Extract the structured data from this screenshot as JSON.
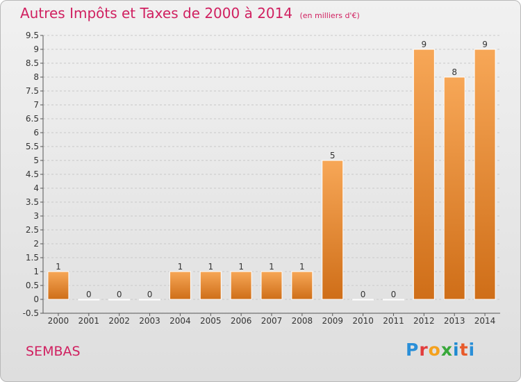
{
  "title": "Autres Impôts et Taxes de 2000 à 2014",
  "subtitle": "(en milliers d'€)",
  "commune": "SEMBAS",
  "logo": [
    "P",
    "r",
    "o",
    "x",
    "i",
    "t",
    "i"
  ],
  "colors": {
    "bar_top": "#f7a757",
    "bar_bottom": "#cf6e18",
    "accent": "#d02060",
    "grid": "#c8c8c8"
  },
  "chart_data": {
    "type": "bar",
    "title": "Autres Impôts et Taxes de 2000 à 2014",
    "xlabel": "",
    "ylabel": "",
    "categories": [
      "2000",
      "2001",
      "2002",
      "2003",
      "2004",
      "2005",
      "2006",
      "2007",
      "2008",
      "2009",
      "2010",
      "2011",
      "2012",
      "2013",
      "2014"
    ],
    "values": [
      1,
      0,
      0,
      0,
      1,
      1,
      1,
      1,
      1,
      5,
      0,
      0,
      9,
      8,
      9
    ],
    "ylim": [
      -0.5,
      9.5
    ],
    "yticks": [
      "-0.5",
      "0",
      "0.5",
      "1",
      "1.5",
      "2",
      "2.5",
      "3",
      "3.5",
      "4",
      "4.5",
      "5",
      "5.5",
      "6",
      "6.5",
      "7",
      "7.5",
      "8",
      "8.5",
      "9",
      "9.5"
    ],
    "grid": "horizontal dashed"
  }
}
